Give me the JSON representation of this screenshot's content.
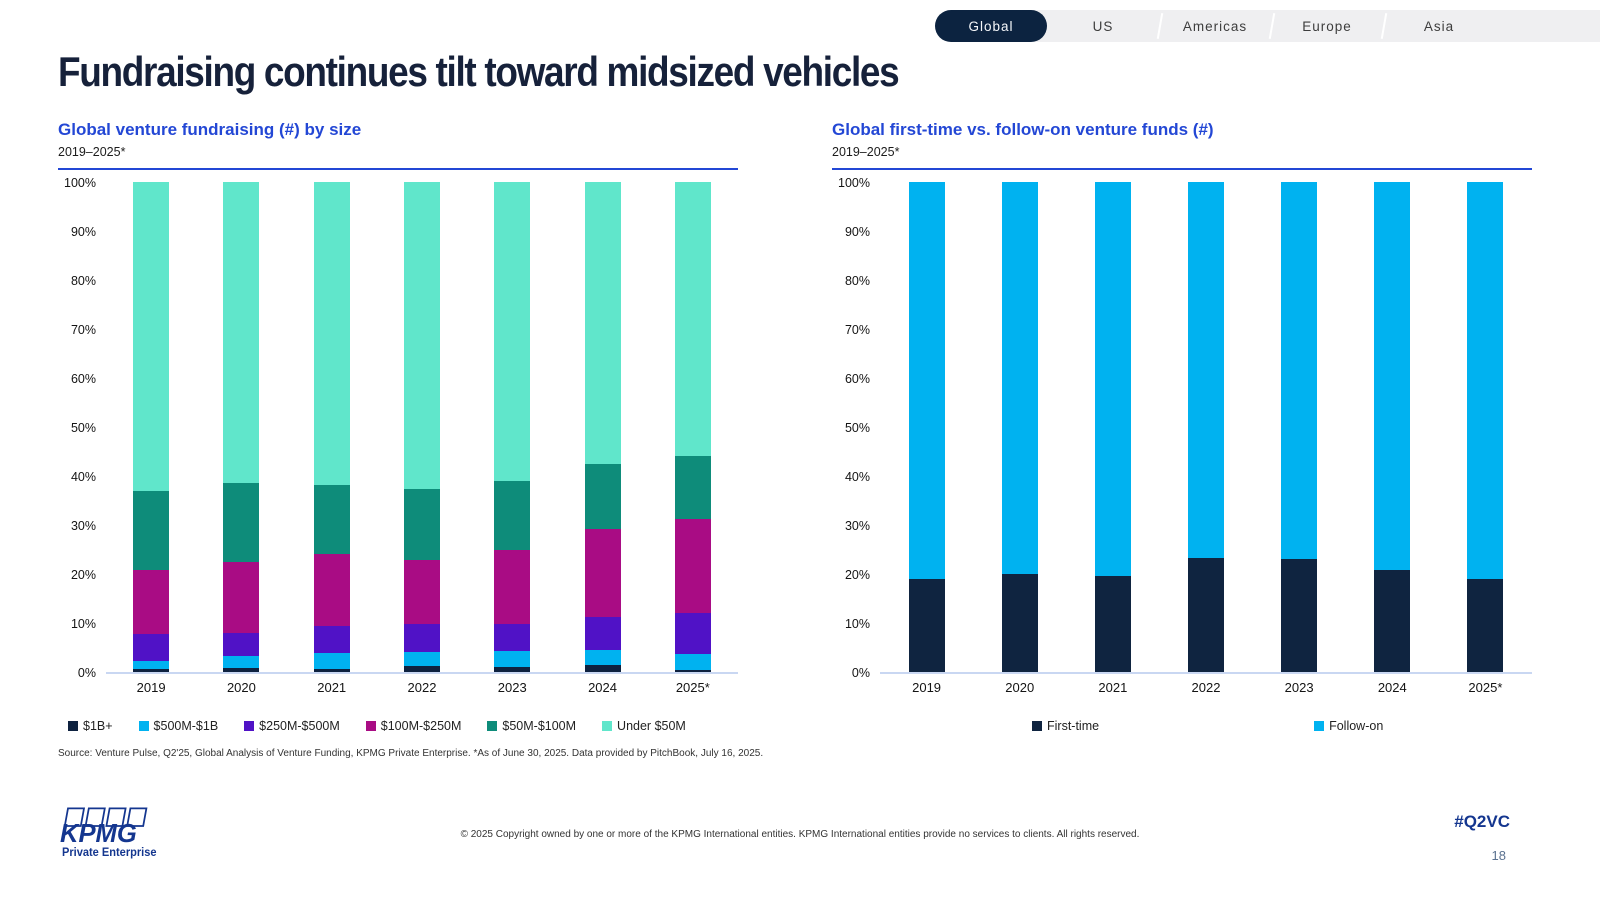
{
  "tabs": {
    "items": [
      {
        "label": "Global",
        "active": true
      },
      {
        "label": "US",
        "active": false
      },
      {
        "label": "Americas",
        "active": false
      },
      {
        "label": "Europe",
        "active": false
      },
      {
        "label": "Asia",
        "active": false
      }
    ]
  },
  "page_title": "Fundraising continues tilt toward midsized vehicles",
  "chart_data": [
    {
      "type": "bar",
      "stacked": true,
      "title": "Global venture fundraising (#) by size",
      "subtitle": "2019–2025*",
      "categories": [
        "2019",
        "2020",
        "2021",
        "2022",
        "2023",
        "2024",
        "2025*"
      ],
      "series": [
        {
          "name": "$1B+",
          "color": "#0e2240",
          "values": [
            0.6,
            0.8,
            0.6,
            1.3,
            1.0,
            1.5,
            0.4
          ]
        },
        {
          "name": "$500M-$1B",
          "color": "#00b2f0",
          "values": [
            1.6,
            2.5,
            3.3,
            2.8,
            3.3,
            3.0,
            3.2
          ]
        },
        {
          "name": "$250M-$500M",
          "color": "#5012c6",
          "values": [
            5.6,
            4.7,
            5.4,
            5.6,
            5.6,
            6.8,
            8.4
          ]
        },
        {
          "name": "$100M-$250M",
          "color": "#a90c84",
          "values": [
            13.0,
            14.5,
            14.8,
            13.2,
            15.1,
            17.8,
            19.3
          ]
        },
        {
          "name": "$50M-$100M",
          "color": "#0e8c7a",
          "values": [
            16.1,
            16.1,
            14.0,
            14.4,
            14.0,
            13.4,
            12.8
          ]
        },
        {
          "name": "Under $50M",
          "color": "#60e6cb",
          "values": [
            63.1,
            61.4,
            61.9,
            62.7,
            61.0,
            57.5,
            55.9
          ]
        }
      ],
      "ylim": [
        0,
        100
      ],
      "yticks": [
        "100%",
        "90%",
        "80%",
        "70%",
        "60%",
        "50%",
        "40%",
        "30%",
        "20%",
        "10%",
        "0%"
      ],
      "grid": false,
      "legend_position": "bottom"
    },
    {
      "type": "bar",
      "stacked": true,
      "title": "Global first-time vs. follow-on venture funds (#)",
      "subtitle": "2019–2025*",
      "categories": [
        "2019",
        "2020",
        "2021",
        "2022",
        "2023",
        "2024",
        "2025*"
      ],
      "series": [
        {
          "name": "First-time",
          "color": "#0f2440",
          "values": [
            19.0,
            20.0,
            19.5,
            23.3,
            23.0,
            20.8,
            19.0
          ]
        },
        {
          "name": "Follow-on",
          "color": "#00b2f0",
          "values": [
            81.0,
            80.0,
            80.5,
            76.7,
            77.0,
            79.2,
            81.0
          ]
        }
      ],
      "ylim": [
        0,
        100
      ],
      "yticks": [
        "100%",
        "90%",
        "80%",
        "70%",
        "60%",
        "50%",
        "40%",
        "30%",
        "20%",
        "10%",
        "0%"
      ],
      "grid": false,
      "legend_position": "bottom"
    }
  ],
  "source_note": "Source: Venture Pulse, Q2'25, Global Analysis of Venture Funding, KPMG Private Enterprise. *As of June 30, 2025. Data provided by PitchBook, July 16, 2025.",
  "footer": {
    "logo_text": "KPMG",
    "logo_subtext": "Private Enterprise",
    "copyright": "© 2025 Copyright owned by one or more of the KPMG International entities. KPMG International entities provide no services to clients. All rights reserved.",
    "hashtag": "#Q2VC",
    "page_number": "18"
  },
  "colors": {
    "accent_blue": "#2347d5",
    "navy": "#0c2340",
    "kpmg_blue": "#14368f",
    "axis_line": "#c9d7f2"
  }
}
